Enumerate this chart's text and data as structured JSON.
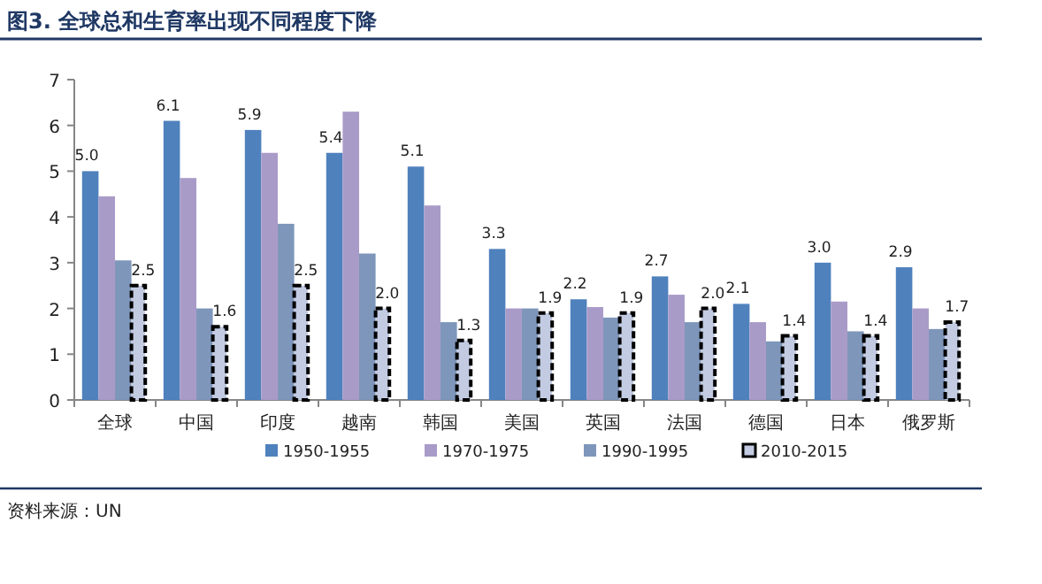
{
  "chart_data": {
    "type": "bar",
    "title": "图3.   全球总和生育率出现不同程度下降",
    "categories": [
      "全球",
      "中国",
      "印度",
      "越南",
      "韩国",
      "美国",
      "英国",
      "法国",
      "德国",
      "日本",
      "俄罗斯"
    ],
    "series": [
      {
        "name": "1950-1955",
        "color": "#4f81bd",
        "values": [
          5.0,
          6.1,
          5.9,
          5.4,
          5.1,
          3.3,
          2.2,
          2.7,
          2.1,
          3.0,
          2.9
        ],
        "value_labels": [
          "5.0",
          "6.1",
          "5.9",
          "5.4",
          "5.1",
          "3.3",
          "2.2",
          "2.7",
          "2.1",
          "3.0",
          "2.9"
        ]
      },
      {
        "name": "1970-1975",
        "color": "#a99bc8",
        "values": [
          4.45,
          4.85,
          5.4,
          6.3,
          4.25,
          2.0,
          2.03,
          2.3,
          1.7,
          2.15,
          2.0
        ]
      },
      {
        "name": "1990-1995",
        "color": "#7f96bb",
        "values": [
          3.05,
          2.0,
          3.85,
          3.2,
          1.7,
          2.0,
          1.8,
          1.7,
          1.28,
          1.5,
          1.55
        ]
      },
      {
        "name": "2010-2015",
        "color": "#c3cbe2",
        "line_style": "dashed",
        "values": [
          2.5,
          1.6,
          2.5,
          2.0,
          1.3,
          1.9,
          1.9,
          2.0,
          1.4,
          1.4,
          1.7
        ],
        "value_labels": [
          "2.5",
          "1.6",
          "2.5",
          "2.0",
          "1.3",
          "1.9",
          "1.9",
          "2.0",
          "1.4",
          "1.4",
          "1.7"
        ]
      }
    ],
    "ylim": [
      0,
      7
    ],
    "yticks": [
      0,
      1,
      2,
      3,
      4,
      5,
      6,
      7
    ],
    "grid": false,
    "legend": "bottom",
    "annotations": [
      "资料来源：UN"
    ]
  }
}
